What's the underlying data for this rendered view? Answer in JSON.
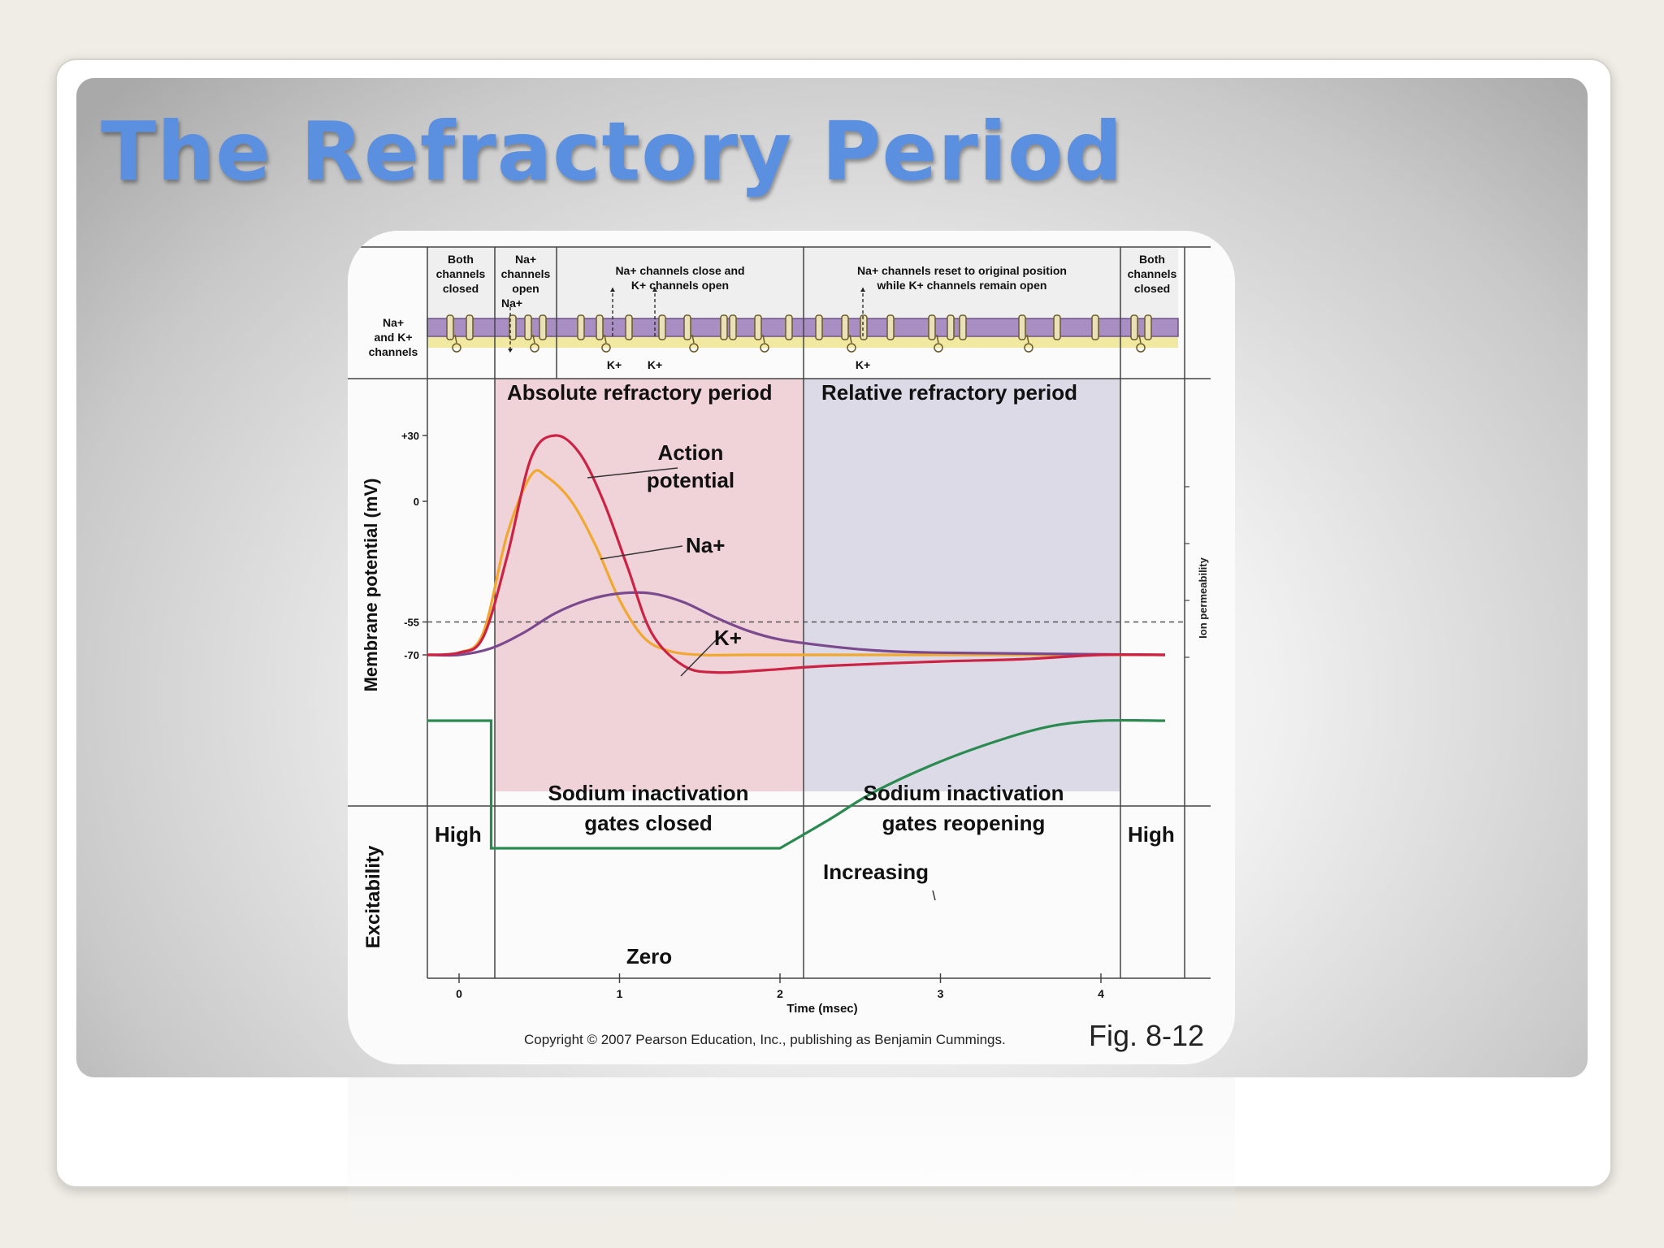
{
  "slide": {
    "title": "The Refractory Period"
  },
  "figure": {
    "channel_header": {
      "row_label": [
        "Na+",
        "and K+",
        "channels"
      ],
      "cols": [
        {
          "lines": [
            "Both",
            "channels",
            "closed"
          ]
        },
        {
          "lines": [
            "Na+",
            "channels",
            "open"
          ]
        },
        {
          "lines": [
            "Na+ channels close and",
            "K+ channels open"
          ]
        },
        {
          "lines": [
            "Na+ channels reset to original position",
            "while K+ channels remain open"
          ]
        },
        {
          "lines": [
            "Both",
            "channels",
            "closed"
          ]
        }
      ],
      "ion_labels": [
        "Na+",
        "K+",
        "K+",
        "K+"
      ]
    },
    "periods": {
      "absolute": "Absolute refractory period",
      "relative": "Relative refractory period"
    },
    "gates": {
      "closed": [
        "Sodium inactivation",
        "gates closed"
      ],
      "reopening": [
        "Sodium inactivation",
        "gates reopening"
      ]
    },
    "excitability": {
      "ylabel": "Excitability",
      "high_left": "High",
      "high_right": "High",
      "increasing": "Increasing",
      "zero": "Zero"
    },
    "caption": "Copyright © 2007 Pearson Education, Inc., publishing as Benjamin Cummings.",
    "fig_label": "Fig. 8-12"
  },
  "chart_data": {
    "type": "line",
    "xlabel": "Time (msec)",
    "ylabel": "Membrane potential (mV)",
    "y2label": "Ion permeability",
    "xlim": [
      -0.2,
      4.4
    ],
    "ylim": [
      -80,
      45
    ],
    "xticks": [
      "0",
      "1",
      "2",
      "3",
      "4"
    ],
    "yticks": [
      "+30",
      "0",
      "-55",
      "-70"
    ],
    "threshold": -55,
    "series": [
      {
        "name": "Action potential",
        "color": "#cc2244",
        "x": [
          -0.2,
          0.0,
          0.15,
          0.3,
          0.45,
          0.6,
          0.75,
          0.9,
          1.05,
          1.2,
          1.4,
          1.6,
          1.9,
          2.3,
          3.0,
          3.5,
          4.0,
          4.4
        ],
        "y": [
          -70,
          -69,
          -62,
          -25,
          20,
          30,
          22,
          0,
          -30,
          -60,
          -75,
          -78,
          -77,
          -75,
          -73,
          -72,
          -70,
          -70
        ]
      },
      {
        "name": "Na+",
        "color": "#f0a830",
        "x": [
          -0.2,
          0.0,
          0.15,
          0.3,
          0.45,
          0.55,
          0.7,
          0.85,
          1.0,
          1.15,
          1.3,
          1.5,
          1.8,
          2.3,
          3.0,
          4.4
        ],
        "y": [
          -70,
          -69,
          -60,
          -15,
          12,
          11,
          0,
          -20,
          -45,
          -62,
          -68,
          -70,
          -70,
          -70,
          -70,
          -70
        ]
      },
      {
        "name": "K+",
        "color": "#7b4a8e",
        "x": [
          -0.2,
          0.0,
          0.2,
          0.4,
          0.6,
          0.8,
          1.0,
          1.2,
          1.4,
          1.6,
          1.8,
          2.0,
          2.3,
          2.6,
          3.0,
          4.4
        ],
        "y": [
          -70,
          -70,
          -67,
          -60,
          -51,
          -45,
          -42,
          -42,
          -46,
          -53,
          -59,
          -63,
          -66,
          -68,
          -69,
          -70
        ]
      },
      {
        "name": "Excitability",
        "color": "#2a8a50",
        "x": [
          -0.2,
          0.2,
          0.2,
          2.0,
          2.3,
          2.6,
          3.0,
          3.4,
          3.7,
          4.0,
          4.4
        ],
        "y": [
          1,
          1,
          0,
          0,
          0.22,
          0.45,
          0.68,
          0.86,
          0.96,
          1.0,
          1.0
        ]
      }
    ],
    "annotations": [
      "Action potential",
      "Na+",
      "K+"
    ]
  }
}
